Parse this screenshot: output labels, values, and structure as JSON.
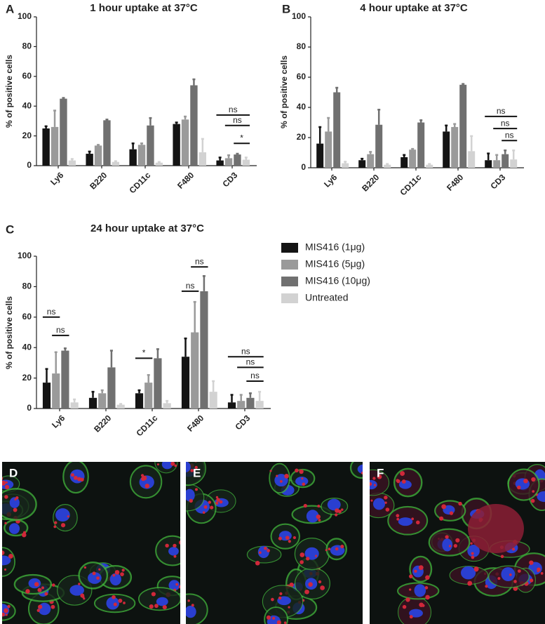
{
  "chart_data": [
    {
      "type": "bar",
      "panel": "A",
      "title": "1 hour uptake at  37°C",
      "ylabel": "% of positive cells",
      "categories": [
        "Ly6",
        "B220",
        "CD11c",
        "F480",
        "CD3"
      ],
      "series": [
        {
          "color": "#141414",
          "values": [
            25,
            8,
            11,
            28,
            3.5
          ],
          "errors": [
            1.5,
            1.5,
            4,
            1,
            2
          ]
        },
        {
          "color": "#9a9a9a",
          "values": [
            26,
            13.5,
            14,
            31,
            5
          ],
          "errors": [
            11,
            0.5,
            1,
            2,
            2
          ]
        },
        {
          "color": "#707070",
          "values": [
            45,
            30.5,
            27,
            54,
            7.5
          ],
          "errors": [
            0.5,
            0.5,
            5,
            4,
            0.5
          ]
        },
        {
          "color": "#d2d2d2",
          "values": [
            3.5,
            2.5,
            2,
            9,
            4
          ],
          "errors": [
            1,
            0.5,
            0.5,
            9,
            1.5
          ]
        }
      ],
      "ylim": [
        0,
        100
      ],
      "yticks": [
        0,
        20,
        40,
        60,
        80,
        100
      ],
      "annotations": [
        {
          "text": "ns"
        },
        {
          "text": "ns"
        },
        {
          "text": "*"
        }
      ]
    },
    {
      "type": "bar",
      "panel": "B",
      "title": "4 hour uptake at  37°C",
      "ylabel": "% of positive cells",
      "categories": [
        "Ly6",
        "B220",
        "CD11c",
        "F480",
        "CD3"
      ],
      "series": [
        {
          "color": "#141414",
          "values": [
            16,
            5,
            7,
            24,
            5
          ],
          "errors": [
            11,
            1,
            1.5,
            4,
            4.5
          ]
        },
        {
          "color": "#9a9a9a",
          "values": [
            24,
            9,
            12,
            27,
            5
          ],
          "errors": [
            9,
            1.5,
            0.5,
            2,
            3.5
          ]
        },
        {
          "color": "#707070",
          "values": [
            50,
            28.5,
            30,
            55,
            9
          ],
          "errors": [
            3,
            10,
            1.5,
            0.5,
            2.5
          ]
        },
        {
          "color": "#d2d2d2",
          "values": [
            3,
            2,
            2,
            11,
            5.5
          ],
          "errors": [
            1,
            0.5,
            0.5,
            10,
            6
          ]
        }
      ],
      "ylim": [
        0,
        100
      ],
      "yticks": [
        0,
        20,
        40,
        60,
        80,
        100
      ],
      "annotations": [
        {
          "text": "ns"
        },
        {
          "text": "ns"
        },
        {
          "text": "ns"
        }
      ]
    },
    {
      "type": "bar",
      "panel": "C",
      "title": "24 hour uptake at  37°C",
      "ylabel": "% of positive cells",
      "categories": [
        "Ly6",
        "B220",
        "CD11c",
        "F480",
        "CD3"
      ],
      "series": [
        {
          "name": "MIS416 (1μg)",
          "color": "#141414",
          "values": [
            17,
            7,
            10,
            34,
            4
          ],
          "errors": [
            9,
            4,
            2,
            12,
            5
          ]
        },
        {
          "name": "MIS416 (5μg)",
          "color": "#9a9a9a",
          "values": [
            23,
            10,
            17,
            50,
            5
          ],
          "errors": [
            14,
            2,
            5,
            20,
            4
          ]
        },
        {
          "name": "MIS416 (10μg)",
          "color": "#707070",
          "values": [
            38,
            27,
            33,
            77,
            7
          ],
          "errors": [
            1.5,
            11,
            6,
            10,
            3
          ]
        },
        {
          "name": "Untreated",
          "color": "#d2d2d2",
          "values": [
            4,
            2.5,
            3.5,
            11,
            5
          ],
          "errors": [
            2,
            0.5,
            1.5,
            7,
            6
          ]
        }
      ],
      "ylim": [
        0,
        100
      ],
      "yticks": [
        0,
        20,
        40,
        60,
        80,
        100
      ],
      "annotations": [
        {
          "text": "ns"
        },
        {
          "text": "ns"
        },
        {
          "text": "*"
        },
        {
          "text": "ns"
        },
        {
          "text": "ns"
        },
        {
          "text": "ns"
        },
        {
          "text": "ns"
        },
        {
          "text": "ns"
        }
      ]
    }
  ],
  "images": [
    {
      "label": "D"
    },
    {
      "label": "E"
    },
    {
      "label": "F"
    }
  ]
}
